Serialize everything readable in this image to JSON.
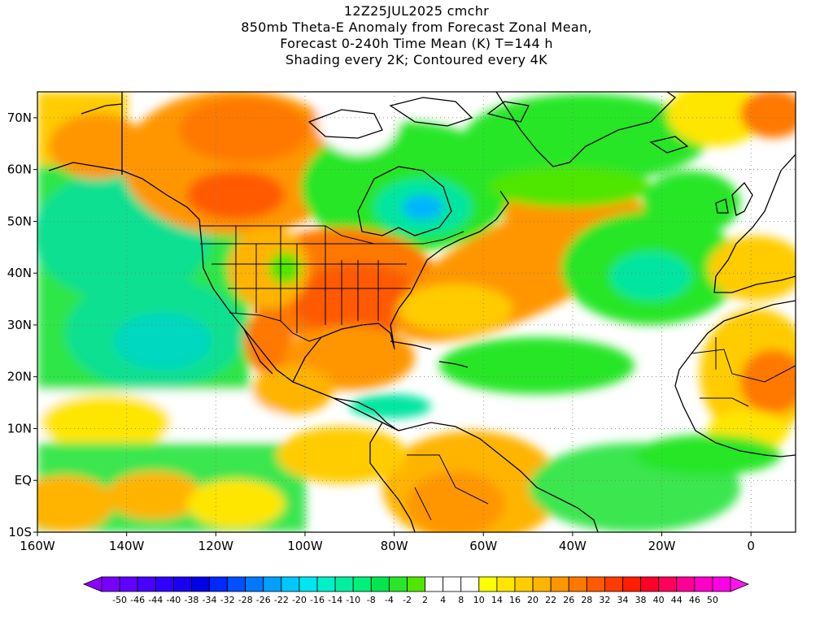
{
  "header": {
    "lines": [
      "12Z25JUL2025 cmchr",
      "850mb Theta-E Anomaly from Forecast Zonal Mean,",
      "Forecast 0-240h Time Mean (K) T=144 h",
      "Shading every 2K; Contoured every 4K"
    ]
  },
  "map": {
    "lon_range": [
      -160,
      10
    ],
    "lat_range": [
      -10,
      75
    ],
    "lat_ticks": [
      {
        "value": 70,
        "label": "70N"
      },
      {
        "value": 60,
        "label": "60N"
      },
      {
        "value": 50,
        "label": "50N"
      },
      {
        "value": 40,
        "label": "40N"
      },
      {
        "value": 30,
        "label": "30N"
      },
      {
        "value": 20,
        "label": "20N"
      },
      {
        "value": 10,
        "label": "10N"
      },
      {
        "value": 0,
        "label": "EQ"
      },
      {
        "value": -10,
        "label": "10S"
      }
    ],
    "lon_ticks": [
      {
        "value": -160,
        "label": "160W"
      },
      {
        "value": -140,
        "label": "140W"
      },
      {
        "value": -120,
        "label": "120W"
      },
      {
        "value": -100,
        "label": "100W"
      },
      {
        "value": -80,
        "label": "80W"
      },
      {
        "value": -60,
        "label": "60W"
      },
      {
        "value": -40,
        "label": "40W"
      },
      {
        "value": -20,
        "label": "20W"
      },
      {
        "value": 0,
        "label": "0"
      }
    ]
  },
  "colorbar": {
    "labels": [
      "-50",
      "-46",
      "-44",
      "-40",
      "-38",
      "-34",
      "-32",
      "-28",
      "-26",
      "-22",
      "-20",
      "-16",
      "-14",
      "-10",
      "-8",
      "-4",
      "-2",
      "2",
      "4",
      "8",
      "10",
      "14",
      "16",
      "20",
      "22",
      "26",
      "28",
      "32",
      "34",
      "38",
      "40",
      "44",
      "46",
      "50"
    ],
    "colors": [
      "#7800ff",
      "#6000ff",
      "#4800ff",
      "#3000ff",
      "#1a00f0",
      "#0000e6",
      "#0028ff",
      "#0050ff",
      "#0078ff",
      "#00a0ff",
      "#00c8ff",
      "#00e6f0",
      "#00f0c8",
      "#00f0a0",
      "#00f078",
      "#00e650",
      "#28e628",
      "#50e600",
      "#ffffff",
      "#ffffff",
      "#ffffff",
      "#ffff00",
      "#ffe600",
      "#ffcc00",
      "#ffb400",
      "#ff9600",
      "#ff7800",
      "#ff5a00",
      "#ff3c00",
      "#ff1e00",
      "#ff0028",
      "#ff005a",
      "#ff0096",
      "#ff00c8",
      "#ff00e6"
    ],
    "left_arrow_color": "#8c00ff",
    "right_arrow_color": "#ff14f0"
  }
}
